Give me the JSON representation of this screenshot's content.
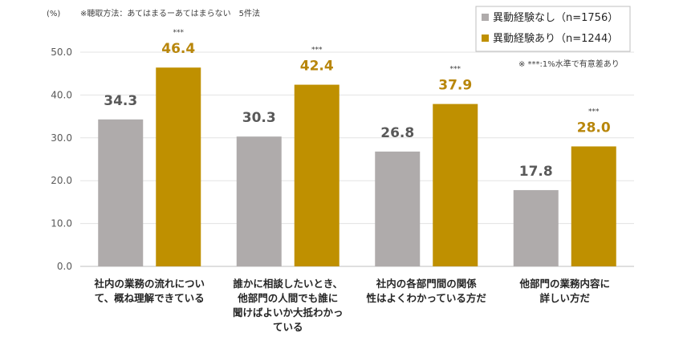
{
  "chart_data": {
    "type": "bar",
    "unit_label": "(%)",
    "method_note": "※聴取方法：あてはまるーあてはまらない　5件法",
    "significance_note": "※ ***:1%水準で有意差あり",
    "significance_marker": "***",
    "ylim": [
      0,
      50
    ],
    "yticks": [
      "0.0",
      "10.0",
      "20.0",
      "30.0",
      "40.0",
      "50.0"
    ],
    "grid": true,
    "legend_position": "top-right",
    "categories": [
      [
        "社内の業務の流れについ",
        "て、概ね理解できている"
      ],
      [
        "誰かに相談したいとき、",
        "他部門の人間でも誰に",
        "聞けばよいか大抵わかっ",
        "ている"
      ],
      [
        "社内の各部門間の関係",
        "性はよくわかっている方だ"
      ],
      [
        "他部門の業務内容に",
        "詳しい方だ"
      ]
    ],
    "series": [
      {
        "name": "異動経験なし（n=1756）",
        "color": "#afabab",
        "label_color": "#595959",
        "values": [
          34.3,
          30.3,
          26.8,
          17.8
        ]
      },
      {
        "name": "異動経験あり（n=1244）",
        "color": "#bf9000",
        "label_color": "#b8860b",
        "values": [
          46.4,
          42.4,
          37.9,
          28.0
        ]
      }
    ]
  }
}
